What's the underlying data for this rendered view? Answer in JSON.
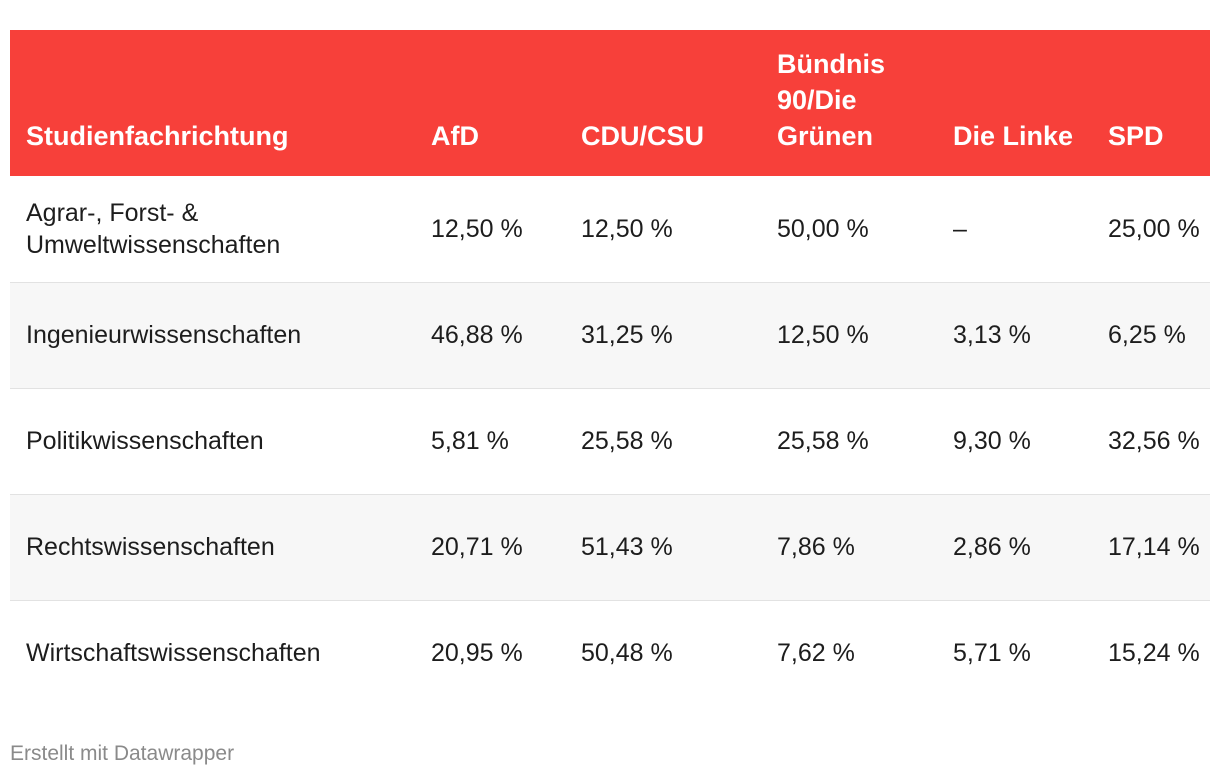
{
  "chart_data": {
    "type": "table",
    "columns": [
      "Studienfachrichtung",
      "AfD",
      "CDU/CSU",
      "Bündnis 90/Die Grünen",
      "Die Linke",
      "SPD"
    ],
    "rows": [
      [
        "Agrar-, Forst- & Umweltwissenschaften",
        "12,50 %",
        "12,50 %",
        "50,00 %",
        "–",
        "25,00 %"
      ],
      [
        "Ingenieurwissenschaften",
        "46,88 %",
        "31,25 %",
        "12,50 %",
        "3,13 %",
        "6,25 %"
      ],
      [
        "Politikwissenschaften",
        "5,81 %",
        "25,58 %",
        "25,58 %",
        "9,30 %",
        "32,56 %"
      ],
      [
        "Rechtswissenschaften",
        "20,71 %",
        "51,43 %",
        "7,86 %",
        "2,86 %",
        "17,14 %"
      ],
      [
        "Wirtschaftswissenschaften",
        "20,95 %",
        "50,48 %",
        "7,62 %",
        "5,71 %",
        "15,24 %"
      ]
    ],
    "header_color": "#f7403a",
    "header_text_color": "#ffffff"
  },
  "footer": {
    "credit": "Erstellt mit Datawrapper"
  }
}
